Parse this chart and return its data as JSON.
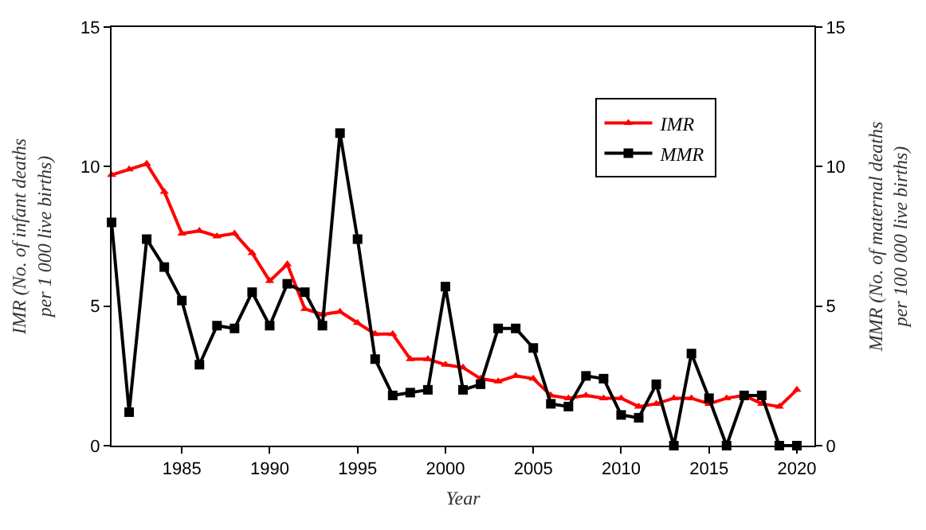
{
  "chart_data": {
    "type": "line",
    "x": [
      1981,
      1982,
      1983,
      1984,
      1985,
      1986,
      1987,
      1988,
      1989,
      1990,
      1991,
      1992,
      1993,
      1994,
      1995,
      1996,
      1997,
      1998,
      1999,
      2000,
      2001,
      2002,
      2003,
      2004,
      2005,
      2006,
      2007,
      2008,
      2009,
      2010,
      2011,
      2012,
      2013,
      2014,
      2015,
      2016,
      2017,
      2018,
      2019,
      2020
    ],
    "series": [
      {
        "name": "IMR",
        "color": "#ff0000",
        "marker": "triangle",
        "values": [
          9.7,
          9.9,
          10.1,
          9.1,
          7.6,
          7.7,
          7.5,
          7.6,
          6.9,
          5.9,
          6.5,
          4.9,
          4.7,
          4.8,
          4.4,
          4.0,
          4.0,
          3.1,
          3.1,
          2.9,
          2.8,
          2.4,
          2.3,
          2.5,
          2.4,
          1.8,
          1.7,
          1.8,
          1.7,
          1.7,
          1.4,
          1.5,
          1.7,
          1.7,
          1.5,
          1.7,
          1.8,
          1.5,
          1.4,
          2.0
        ]
      },
      {
        "name": "MMR",
        "color": "#000000",
        "marker": "square",
        "axis": "y2",
        "values": [
          8.0,
          1.2,
          7.4,
          6.4,
          5.2,
          2.9,
          4.3,
          4.2,
          5.5,
          4.3,
          5.8,
          5.5,
          4.3,
          11.2,
          7.4,
          3.1,
          1.8,
          1.9,
          2.0,
          5.7,
          2.0,
          2.2,
          4.2,
          4.2,
          3.5,
          1.5,
          1.4,
          2.5,
          2.4,
          1.1,
          1.0,
          2.2,
          0,
          3.3,
          1.7,
          0,
          1.8,
          1.8,
          0,
          0
        ]
      }
    ],
    "xlabel": "Year",
    "ylabel": "IMR (No. of infant deaths\nper 1 000 live births)",
    "y2label": "MMR (No. of maternal deaths\nper 100 000 live births)",
    "xlim": [
      1981,
      2021
    ],
    "xticks": [
      1985,
      1990,
      1995,
      2000,
      2005,
      2010,
      2015,
      2020
    ],
    "ylim": [
      0,
      15
    ],
    "yticks": [
      0,
      5,
      10,
      15
    ],
    "y2lim": [
      0,
      15
    ],
    "y2ticks": [
      0,
      5,
      10,
      15
    ],
    "legend": "top right",
    "line_style": "solid"
  }
}
